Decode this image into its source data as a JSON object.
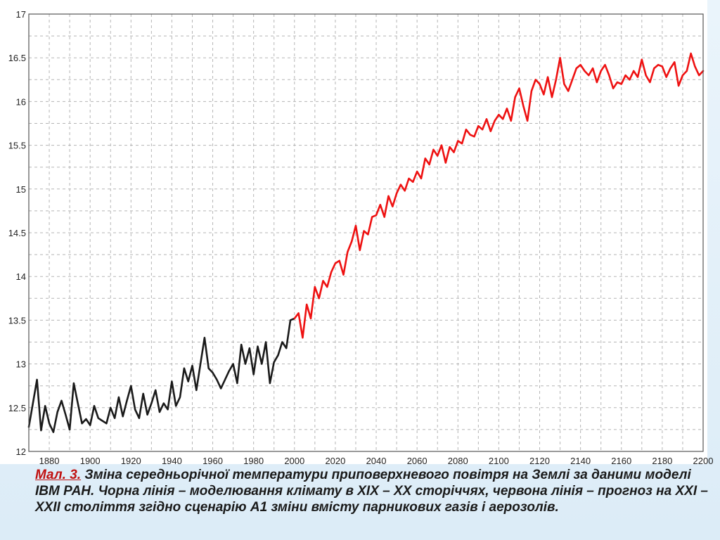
{
  "caption": {
    "label": "Мал. 3.",
    "text": " Зміна середньорічної температури приповерхневого  повітря на Землі за даними моделі ІВМ РАН. Чорна лінія – моделювання клімату в ХІХ – ХХ сторіччях, червона лінія – прогноз на ХХІ – ХХІІ століття згідно сценарію А1 зміни вмісту парникових газів і аерозолів."
  },
  "chart_data": {
    "type": "line",
    "title": "",
    "xlabel": "",
    "ylabel": "",
    "xlim": [
      1870,
      2200
    ],
    "ylim": [
      12,
      17
    ],
    "grid": true,
    "x_ticks": [
      "1880",
      "1900",
      "1920",
      "1940",
      "1960",
      "1980",
      "2000",
      "2020",
      "2040",
      "2060",
      "2080",
      "2100",
      "2120",
      "2140",
      "2160",
      "2180",
      "2200"
    ],
    "y_ticks": [
      "12",
      "12.5",
      "13",
      "13.5",
      "14",
      "14.5",
      "15",
      "15.5",
      "16",
      "16.5",
      "17"
    ],
    "colors": {
      "historical": "#1a1a1a",
      "forecast": "#ee1111",
      "grid": "#b5b5b5",
      "frame": "#555555"
    },
    "series": [
      {
        "key": "historical",
        "points": [
          [
            1870,
            12.28
          ],
          [
            1872,
            12.55
          ],
          [
            1874,
            12.82
          ],
          [
            1876,
            12.24
          ],
          [
            1878,
            12.52
          ],
          [
            1880,
            12.32
          ],
          [
            1882,
            12.22
          ],
          [
            1884,
            12.45
          ],
          [
            1886,
            12.58
          ],
          [
            1888,
            12.42
          ],
          [
            1890,
            12.25
          ],
          [
            1892,
            12.78
          ],
          [
            1894,
            12.55
          ],
          [
            1896,
            12.32
          ],
          [
            1898,
            12.37
          ],
          [
            1900,
            12.3
          ],
          [
            1902,
            12.52
          ],
          [
            1904,
            12.38
          ],
          [
            1906,
            12.35
          ],
          [
            1908,
            12.32
          ],
          [
            1910,
            12.5
          ],
          [
            1912,
            12.38
          ],
          [
            1914,
            12.62
          ],
          [
            1916,
            12.4
          ],
          [
            1918,
            12.58
          ],
          [
            1920,
            12.75
          ],
          [
            1922,
            12.48
          ],
          [
            1924,
            12.38
          ],
          [
            1926,
            12.66
          ],
          [
            1928,
            12.42
          ],
          [
            1930,
            12.55
          ],
          [
            1932,
            12.7
          ],
          [
            1934,
            12.45
          ],
          [
            1936,
            12.55
          ],
          [
            1938,
            12.48
          ],
          [
            1940,
            12.8
          ],
          [
            1942,
            12.52
          ],
          [
            1944,
            12.62
          ],
          [
            1946,
            12.95
          ],
          [
            1948,
            12.8
          ],
          [
            1950,
            12.98
          ],
          [
            1952,
            12.7
          ],
          [
            1954,
            13.0
          ],
          [
            1956,
            13.3
          ],
          [
            1958,
            12.95
          ],
          [
            1960,
            12.9
          ],
          [
            1962,
            12.82
          ],
          [
            1964,
            12.72
          ],
          [
            1966,
            12.82
          ],
          [
            1968,
            12.92
          ],
          [
            1970,
            13.0
          ],
          [
            1972,
            12.78
          ],
          [
            1974,
            13.22
          ],
          [
            1976,
            13.0
          ],
          [
            1978,
            13.18
          ],
          [
            1980,
            12.88
          ],
          [
            1982,
            13.2
          ],
          [
            1984,
            13.0
          ],
          [
            1986,
            13.25
          ],
          [
            1988,
            12.78
          ],
          [
            1990,
            13.02
          ],
          [
            1992,
            13.1
          ],
          [
            1994,
            13.25
          ],
          [
            1996,
            13.18
          ],
          [
            1998,
            13.5
          ],
          [
            2000,
            13.52
          ]
        ]
      },
      {
        "key": "forecast",
        "points": [
          [
            2000,
            13.52
          ],
          [
            2002,
            13.58
          ],
          [
            2004,
            13.3
          ],
          [
            2006,
            13.68
          ],
          [
            2008,
            13.52
          ],
          [
            2010,
            13.88
          ],
          [
            2012,
            13.75
          ],
          [
            2014,
            13.95
          ],
          [
            2016,
            13.88
          ],
          [
            2018,
            14.05
          ],
          [
            2020,
            14.15
          ],
          [
            2022,
            14.18
          ],
          [
            2024,
            14.02
          ],
          [
            2026,
            14.28
          ],
          [
            2028,
            14.4
          ],
          [
            2030,
            14.58
          ],
          [
            2032,
            14.3
          ],
          [
            2034,
            14.52
          ],
          [
            2036,
            14.48
          ],
          [
            2038,
            14.68
          ],
          [
            2040,
            14.7
          ],
          [
            2042,
            14.82
          ],
          [
            2044,
            14.68
          ],
          [
            2046,
            14.92
          ],
          [
            2048,
            14.8
          ],
          [
            2050,
            14.95
          ],
          [
            2052,
            15.05
          ],
          [
            2054,
            14.98
          ],
          [
            2056,
            15.12
          ],
          [
            2058,
            15.08
          ],
          [
            2060,
            15.2
          ],
          [
            2062,
            15.12
          ],
          [
            2064,
            15.35
          ],
          [
            2066,
            15.28
          ],
          [
            2068,
            15.45
          ],
          [
            2070,
            15.38
          ],
          [
            2072,
            15.5
          ],
          [
            2074,
            15.3
          ],
          [
            2076,
            15.48
          ],
          [
            2078,
            15.42
          ],
          [
            2080,
            15.55
          ],
          [
            2082,
            15.52
          ],
          [
            2084,
            15.68
          ],
          [
            2086,
            15.62
          ],
          [
            2088,
            15.6
          ],
          [
            2090,
            15.72
          ],
          [
            2092,
            15.68
          ],
          [
            2094,
            15.8
          ],
          [
            2096,
            15.66
          ],
          [
            2098,
            15.78
          ],
          [
            2100,
            15.85
          ],
          [
            2102,
            15.8
          ],
          [
            2104,
            15.92
          ],
          [
            2106,
            15.78
          ],
          [
            2108,
            16.05
          ],
          [
            2110,
            16.15
          ],
          [
            2112,
            15.95
          ],
          [
            2114,
            15.78
          ],
          [
            2116,
            16.12
          ],
          [
            2118,
            16.25
          ],
          [
            2120,
            16.2
          ],
          [
            2122,
            16.08
          ],
          [
            2124,
            16.28
          ],
          [
            2126,
            16.05
          ],
          [
            2128,
            16.25
          ],
          [
            2130,
            16.5
          ],
          [
            2132,
            16.2
          ],
          [
            2134,
            16.12
          ],
          [
            2136,
            16.25
          ],
          [
            2138,
            16.38
          ],
          [
            2140,
            16.42
          ],
          [
            2142,
            16.35
          ],
          [
            2144,
            16.3
          ],
          [
            2146,
            16.38
          ],
          [
            2148,
            16.22
          ],
          [
            2150,
            16.35
          ],
          [
            2152,
            16.42
          ],
          [
            2154,
            16.3
          ],
          [
            2156,
            16.15
          ],
          [
            2158,
            16.22
          ],
          [
            2160,
            16.2
          ],
          [
            2162,
            16.3
          ],
          [
            2164,
            16.25
          ],
          [
            2166,
            16.35
          ],
          [
            2168,
            16.28
          ],
          [
            2170,
            16.48
          ],
          [
            2172,
            16.3
          ],
          [
            2174,
            16.22
          ],
          [
            2176,
            16.38
          ],
          [
            2178,
            16.42
          ],
          [
            2180,
            16.4
          ],
          [
            2182,
            16.28
          ],
          [
            2184,
            16.38
          ],
          [
            2186,
            16.45
          ],
          [
            2188,
            16.18
          ],
          [
            2190,
            16.3
          ],
          [
            2192,
            16.35
          ],
          [
            2194,
            16.55
          ],
          [
            2196,
            16.4
          ],
          [
            2198,
            16.3
          ],
          [
            2200,
            16.35
          ]
        ]
      }
    ]
  }
}
